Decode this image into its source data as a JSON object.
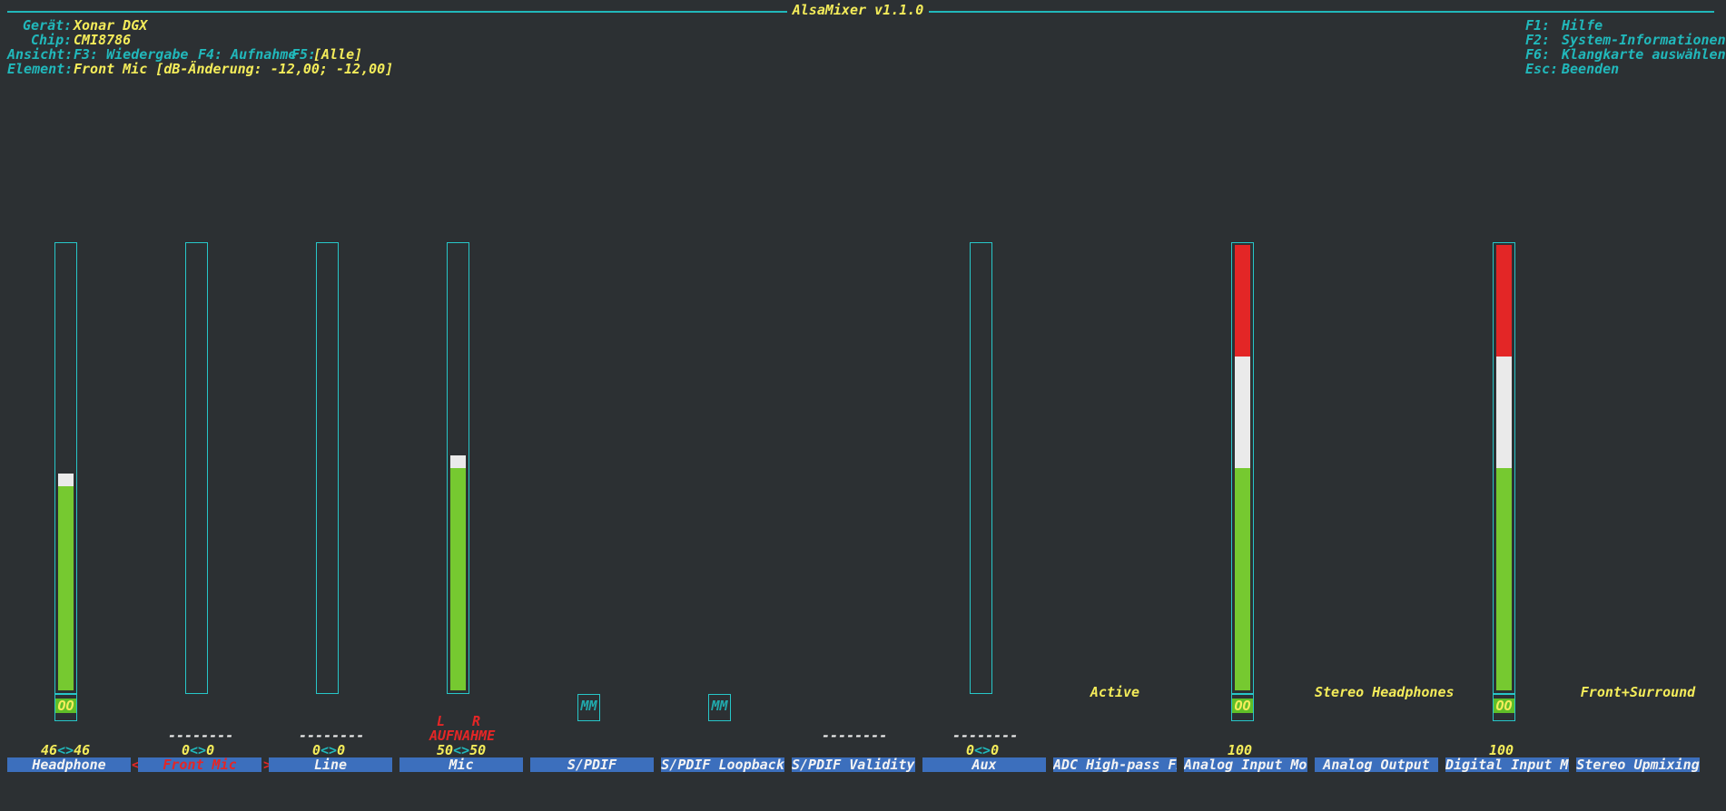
{
  "window": {
    "title": "AlsaMixer v1.1.0"
  },
  "info": {
    "device_label": "Gerät:",
    "device_value": "Xonar DGX",
    "chip_label": "Chip:",
    "chip_value": "CMI8786",
    "view_label": "Ansicht:",
    "view_f3": "F3: Wiedergabe",
    "view_f4": "F4: Aufnahme",
    "view_f5": "F5:",
    "view_all": "[Alle]",
    "element_label": "Element:",
    "element_value": "Front Mic [dB-Änderung: -12,00; -12,00]"
  },
  "help": {
    "f1_key": "F1:",
    "f1_text": "Hilfe",
    "f2_key": "F2:",
    "f2_text": "System-Informationen",
    "f6_key": "F6:",
    "f6_text": "Klangkarte auswählen",
    "esc_key": "Esc:",
    "esc_text": "Beenden"
  },
  "selection_markers": {
    "left": "<",
    "right": ">"
  },
  "colors": {
    "bg": "#2c3033",
    "frame": "#21b8bb",
    "label_bg": "#3c6fbd",
    "green": "#76c930",
    "red": "#e32626"
  },
  "channels": [
    {
      "name": "Headphone",
      "value": "46",
      "arrow": "<>",
      "value_r": "46",
      "mute": "OO",
      "level_pct": 46
    },
    {
      "name": "Front Mic",
      "value": "0",
      "arrow": "<>",
      "value_r": "0",
      "capture": "--------",
      "level_pct": 0,
      "selected": true
    },
    {
      "name": "Line",
      "value": "0",
      "arrow": "<>",
      "value_r": "0",
      "capture": "--------",
      "level_pct": 0
    },
    {
      "name": "Mic",
      "value": "50",
      "arrow": "<>",
      "value_r": "50",
      "capture_l": "L",
      "capture_r": "R",
      "capture": "AUFNAHME",
      "level_pct": 50
    },
    {
      "name": "S/PDIF",
      "mute": "MM"
    },
    {
      "name": "S/PDIF Loopback",
      "mute": "MM"
    },
    {
      "name": "S/PDIF Validity C",
      "capture": "--------"
    },
    {
      "name": "Aux",
      "value": "0",
      "arrow": "<>",
      "value_r": "0",
      "capture": "--------",
      "level_pct": 0
    },
    {
      "name": "ADC High-pass Fil",
      "enum": "Active"
    },
    {
      "name": "Analog Input Moni",
      "value": "100",
      "mute": "OO",
      "level_pct": 100
    },
    {
      "name": "Analog Output",
      "enum": "Stereo Headphones"
    },
    {
      "name": "Digital Input Mon",
      "value": "100",
      "mute": "OO",
      "level_pct": 100
    },
    {
      "name": "Stereo Upmixing",
      "enum": "Front+Surround"
    }
  ]
}
